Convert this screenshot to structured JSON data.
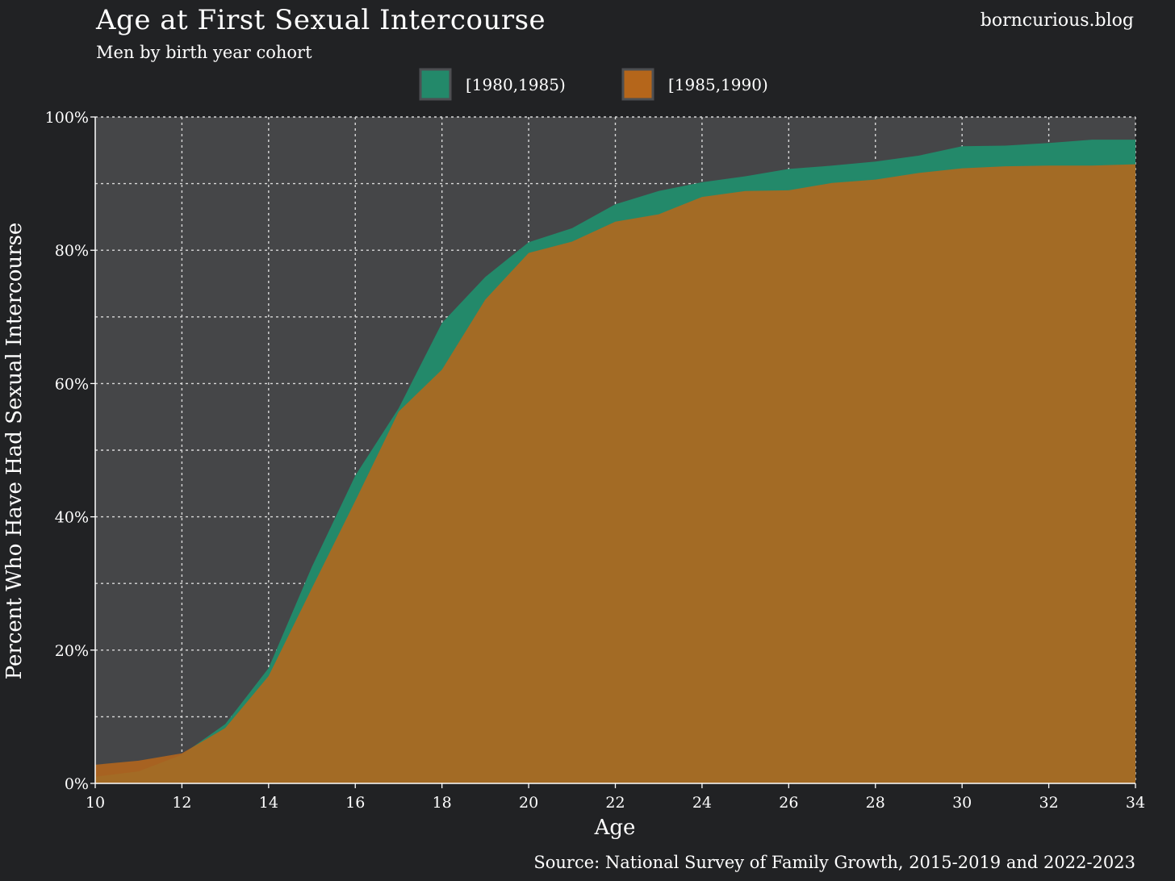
{
  "brand": "borncurious.blog",
  "source": "Source: National Survey of Family Growth, 2015-2019 and 2022-2023",
  "colors": {
    "background": "#212224",
    "panel": "#454648",
    "series1": "#23896a",
    "series2": "#b5661b"
  },
  "chart_data": {
    "type": "area",
    "title": "Age at First Sexual Intercourse",
    "subtitle": "Men by birth year cohort",
    "xlabel": "Age",
    "ylabel": "Percent Who Have Had Sexual Intercourse",
    "xlim": [
      10,
      34
    ],
    "ylim": [
      0,
      100
    ],
    "x": [
      10,
      11,
      12,
      13,
      14,
      15,
      16,
      17,
      18,
      19,
      20,
      21,
      22,
      23,
      24,
      25,
      26,
      27,
      28,
      29,
      30,
      31,
      32,
      33,
      34
    ],
    "x_ticks": [
      10,
      12,
      14,
      16,
      18,
      20,
      22,
      24,
      26,
      28,
      30,
      32,
      34
    ],
    "y_ticks": [
      0,
      20,
      40,
      60,
      80,
      100
    ],
    "y_tick_labels": [
      "0%",
      "20%",
      "40%",
      "60%",
      "80%",
      "100%"
    ],
    "grid": true,
    "legend_position": "top-center",
    "series": [
      {
        "name": "[1980,1985)",
        "color": "#23896a",
        "values": [
          1.0,
          1.8,
          4.3,
          8.9,
          17.3,
          32.5,
          46.2,
          56.3,
          69.1,
          76.0,
          81.2,
          83.3,
          86.9,
          88.9,
          90.2,
          91.1,
          92.2,
          92.7,
          93.3,
          94.2,
          95.6,
          95.7,
          96.1,
          96.6,
          96.6
        ]
      },
      {
        "name": "[1985,1990)",
        "color": "#b5661b",
        "values": [
          2.8,
          3.4,
          4.5,
          8.3,
          16.1,
          29.3,
          42.4,
          55.8,
          62.1,
          72.6,
          79.6,
          81.3,
          84.3,
          85.4,
          88.0,
          88.9,
          89.0,
          90.1,
          90.6,
          91.6,
          92.3,
          92.6,
          92.7,
          92.7,
          92.9
        ]
      }
    ]
  }
}
